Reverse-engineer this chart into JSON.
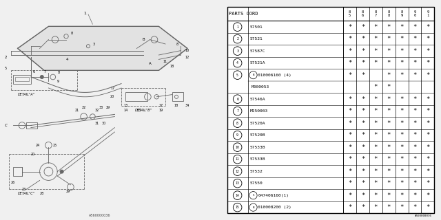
{
  "bg_color": "#f0f0f0",
  "table_bg": "#ffffff",
  "line_color": "#888888",
  "text_color": "#000000",
  "rows": [
    {
      "num": "1",
      "prefix": "",
      "part": "57501",
      "marks": [
        1,
        1,
        1,
        1,
        1,
        1,
        1
      ],
      "sub": null
    },
    {
      "num": "2",
      "prefix": "",
      "part": "57521",
      "marks": [
        1,
        1,
        1,
        1,
        1,
        1,
        1
      ],
      "sub": null
    },
    {
      "num": "3",
      "prefix": "",
      "part": "57587C",
      "marks": [
        1,
        1,
        1,
        1,
        1,
        1,
        1
      ],
      "sub": null
    },
    {
      "num": "4",
      "prefix": "",
      "part": "57521A",
      "marks": [
        1,
        1,
        1,
        1,
        1,
        1,
        1
      ],
      "sub": null
    },
    {
      "num": "5",
      "prefix": "B",
      "part": "010006160 (4)",
      "marks": [
        1,
        1,
        0,
        1,
        1,
        1,
        1
      ],
      "sub": {
        "part": "M000053",
        "marks": [
          0,
          0,
          1,
          1,
          0,
          0,
          0
        ]
      }
    },
    {
      "num": "6",
      "prefix": "",
      "part": "57546A",
      "marks": [
        1,
        1,
        1,
        1,
        1,
        1,
        1
      ],
      "sub": null
    },
    {
      "num": "7",
      "prefix": "",
      "part": "M250003",
      "marks": [
        1,
        1,
        1,
        1,
        1,
        1,
        1
      ],
      "sub": null
    },
    {
      "num": "8",
      "prefix": "",
      "part": "57520A",
      "marks": [
        1,
        1,
        1,
        1,
        1,
        1,
        1
      ],
      "sub": null
    },
    {
      "num": "9",
      "prefix": "",
      "part": "57520B",
      "marks": [
        1,
        1,
        1,
        1,
        1,
        1,
        1
      ],
      "sub": null
    },
    {
      "num": "10",
      "prefix": "",
      "part": "57533B",
      "marks": [
        1,
        1,
        1,
        1,
        1,
        1,
        1
      ],
      "sub": null
    },
    {
      "num": "11",
      "prefix": "",
      "part": "57533B",
      "marks": [
        1,
        1,
        1,
        1,
        1,
        1,
        1
      ],
      "sub": null
    },
    {
      "num": "12",
      "prefix": "",
      "part": "57532",
      "marks": [
        1,
        1,
        1,
        1,
        1,
        1,
        1
      ],
      "sub": null
    },
    {
      "num": "13",
      "prefix": "",
      "part": "57550",
      "marks": [
        1,
        1,
        1,
        1,
        1,
        1,
        1
      ],
      "sub": null
    },
    {
      "num": "14",
      "prefix": "S",
      "part": "047406160(1)",
      "marks": [
        1,
        1,
        1,
        1,
        1,
        1,
        1
      ],
      "sub": null
    },
    {
      "num": "15",
      "prefix": "B",
      "part": "010008200 (2)",
      "marks": [
        1,
        1,
        1,
        1,
        1,
        1,
        1
      ],
      "sub": null
    }
  ],
  "col_headers": [
    "8\n5",
    "8\n6",
    "8\n7",
    "8\n8",
    "8\n9",
    "9\n0",
    "9\n1"
  ],
  "diagram_label": "A560000036"
}
